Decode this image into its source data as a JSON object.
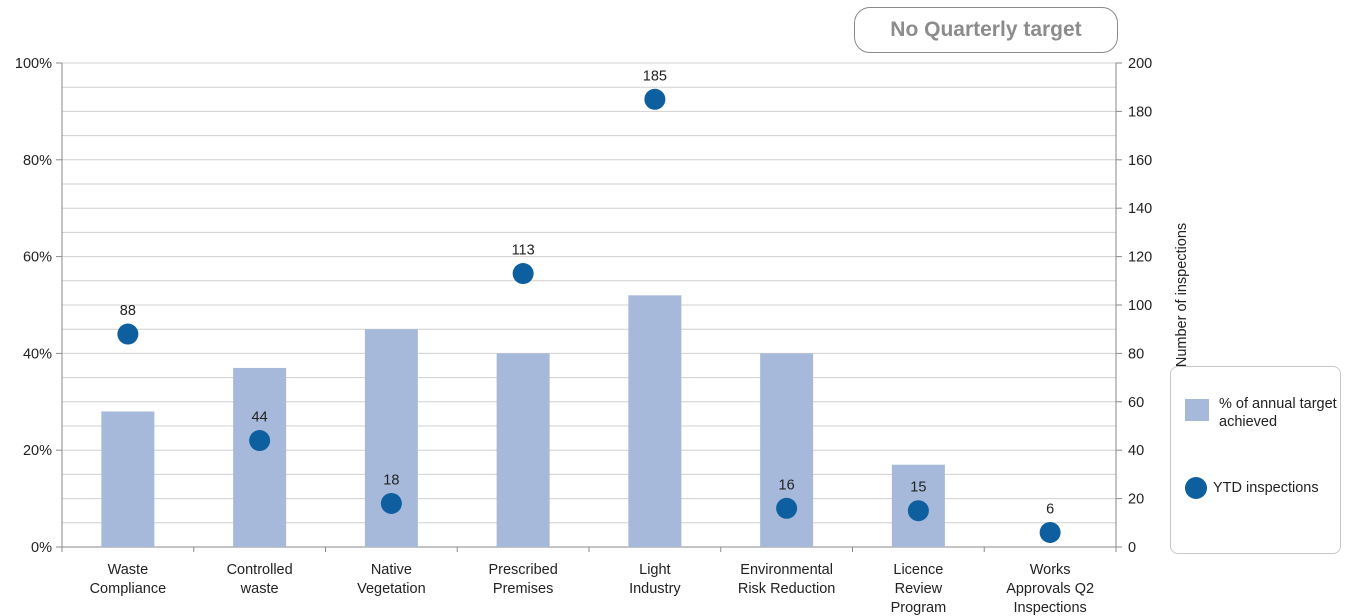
{
  "badge": {
    "text": "No Quarterly target"
  },
  "legend": {
    "bar_label": "% of annual target achieved",
    "dot_label": "YTD inspections"
  },
  "colors": {
    "bar": "#a7b9da",
    "dot": "#0d5fa0",
    "grid": "#d0d0d0",
    "axis": "#8a8a8a"
  },
  "chart_data": {
    "type": "bar",
    "categories": [
      [
        "Waste",
        "Compliance"
      ],
      [
        "Controlled",
        "waste"
      ],
      [
        "Native",
        "Vegetation"
      ],
      [
        "Prescribed",
        "Premises"
      ],
      [
        "Light",
        "Industry"
      ],
      [
        "Environmental",
        "Risk Reduction"
      ],
      [
        "Licence",
        "Review",
        "Program"
      ],
      [
        "Works",
        "Approvals Q2",
        "Inspections"
      ]
    ],
    "series": [
      {
        "name": "% of annual target achieved",
        "type": "bar",
        "axis": "left",
        "values": [
          28,
          37,
          45,
          40,
          52,
          40,
          17,
          null
        ]
      },
      {
        "name": "YTD inspections",
        "type": "scatter",
        "axis": "right",
        "values": [
          88,
          44,
          18,
          113,
          185,
          16,
          15,
          6
        ],
        "labels": [
          "88",
          "44",
          "18",
          "113",
          "185",
          "16",
          "15",
          "6"
        ]
      }
    ],
    "left_axis": {
      "min": 0,
      "max": 100,
      "major_ticks": [
        0,
        20,
        40,
        60,
        80,
        100
      ],
      "tick_labels": [
        "0%",
        "20%",
        "40%",
        "60%",
        "80%",
        "100%"
      ]
    },
    "right_axis": {
      "min": 0,
      "max": 200,
      "label": "Number of inspections",
      "major_ticks": [
        0,
        20,
        40,
        60,
        80,
        100,
        120,
        140,
        160,
        180,
        200
      ],
      "tick_labels": [
        "0",
        "20",
        "40",
        "60",
        "80",
        "100",
        "120",
        "140",
        "160",
        "180",
        "200"
      ]
    },
    "grid": true,
    "legend_position": "right"
  }
}
